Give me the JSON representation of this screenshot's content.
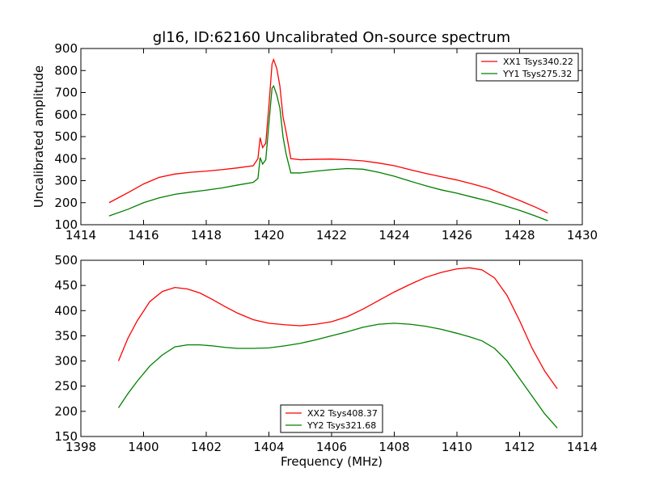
{
  "title": "gl16, ID:62160 Uncalibrated On-source spectrum",
  "chart_data": [
    {
      "type": "line",
      "title": "gl16, ID:62160 Uncalibrated On-source spectrum",
      "xlabel": "",
      "ylabel": "Uncalibrated amplitude",
      "xlim": [
        1414,
        1430
      ],
      "ylim": [
        100,
        900
      ],
      "xticks": [
        "1414",
        "1416",
        "1418",
        "1420",
        "1422",
        "1424",
        "1426",
        "1428",
        "1430"
      ],
      "yticks": [
        "100",
        "200",
        "300",
        "400",
        "500",
        "600",
        "700",
        "800",
        "900"
      ],
      "legend_position": "top-right",
      "series": [
        {
          "name": "XX1 Tsys340.22",
          "color": "#ff0000",
          "x": [
            1414.9,
            1415.5,
            1416.0,
            1416.5,
            1417.0,
            1417.5,
            1418.0,
            1418.5,
            1419.0,
            1419.5,
            1419.65,
            1419.72,
            1419.8,
            1419.9,
            1420.0,
            1420.1,
            1420.15,
            1420.25,
            1420.35,
            1420.45,
            1420.55,
            1420.7,
            1421.0,
            1421.5,
            1422.0,
            1422.5,
            1423.0,
            1423.5,
            1424.0,
            1424.5,
            1425.0,
            1425.5,
            1426.0,
            1426.5,
            1427.0,
            1427.5,
            1428.0,
            1428.5,
            1428.9
          ],
          "values": [
            200,
            245,
            285,
            315,
            330,
            338,
            343,
            350,
            358,
            368,
            400,
            495,
            450,
            470,
            640,
            830,
            850,
            810,
            730,
            590,
            520,
            400,
            395,
            397,
            398,
            395,
            390,
            380,
            368,
            350,
            333,
            318,
            303,
            285,
            265,
            238,
            210,
            180,
            153
          ]
        },
        {
          "name": "YY1 Tsys275.32",
          "color": "#008000",
          "x": [
            1414.9,
            1415.5,
            1416.0,
            1416.5,
            1417.0,
            1417.5,
            1418.0,
            1418.5,
            1419.0,
            1419.5,
            1419.65,
            1419.72,
            1419.8,
            1419.9,
            1420.0,
            1420.1,
            1420.15,
            1420.25,
            1420.35,
            1420.45,
            1420.55,
            1420.7,
            1421.0,
            1421.5,
            1422.0,
            1422.5,
            1423.0,
            1423.5,
            1424.0,
            1424.5,
            1425.0,
            1425.5,
            1426.0,
            1426.5,
            1427.0,
            1427.5,
            1428.0,
            1428.5,
            1428.9
          ],
          "values": [
            140,
            170,
            200,
            222,
            238,
            248,
            257,
            267,
            280,
            292,
            310,
            405,
            375,
            395,
            560,
            720,
            730,
            690,
            630,
            500,
            420,
            335,
            335,
            343,
            350,
            355,
            352,
            338,
            320,
            298,
            277,
            258,
            243,
            225,
            208,
            187,
            165,
            140,
            118
          ]
        }
      ]
    },
    {
      "type": "line",
      "title": "",
      "xlabel": "Frequency (MHz)",
      "ylabel": "",
      "xlim": [
        1398,
        1414
      ],
      "ylim": [
        150,
        500
      ],
      "xticks": [
        "1398",
        "1400",
        "1402",
        "1404",
        "1406",
        "1408",
        "1410",
        "1412",
        "1414"
      ],
      "yticks": [
        "150",
        "200",
        "250",
        "300",
        "350",
        "400",
        "450",
        "500"
      ],
      "legend_position": "lower-center",
      "series": [
        {
          "name": "XX2 Tsys408.37",
          "color": "#ff0000",
          "x": [
            1399.2,
            1399.5,
            1399.8,
            1400.2,
            1400.6,
            1401.0,
            1401.4,
            1401.8,
            1402.2,
            1402.6,
            1403.0,
            1403.5,
            1404.0,
            1404.5,
            1405.0,
            1405.5,
            1406.0,
            1406.5,
            1407.0,
            1407.5,
            1408.0,
            1408.5,
            1409.0,
            1409.5,
            1410.0,
            1410.4,
            1410.8,
            1411.2,
            1411.6,
            1412.0,
            1412.4,
            1412.8,
            1413.2
          ],
          "values": [
            300,
            345,
            380,
            418,
            438,
            446,
            443,
            435,
            422,
            408,
            395,
            382,
            375,
            372,
            370,
            373,
            378,
            388,
            403,
            420,
            437,
            452,
            466,
            476,
            483,
            485,
            481,
            465,
            430,
            380,
            325,
            280,
            245
          ]
        },
        {
          "name": "YY2 Tsys321.68",
          "color": "#008000",
          "x": [
            1399.2,
            1399.5,
            1399.8,
            1400.2,
            1400.6,
            1401.0,
            1401.4,
            1401.8,
            1402.2,
            1402.6,
            1403.0,
            1403.5,
            1404.0,
            1404.5,
            1405.0,
            1405.5,
            1406.0,
            1406.5,
            1407.0,
            1407.5,
            1408.0,
            1408.5,
            1409.0,
            1409.5,
            1410.0,
            1410.4,
            1410.8,
            1411.2,
            1411.6,
            1412.0,
            1412.4,
            1412.8,
            1413.2
          ],
          "values": [
            207,
            235,
            260,
            290,
            312,
            328,
            332,
            332,
            330,
            327,
            325,
            325,
            326,
            330,
            335,
            342,
            350,
            358,
            367,
            373,
            375,
            373,
            369,
            363,
            355,
            348,
            340,
            325,
            300,
            265,
            230,
            195,
            167
          ]
        }
      ]
    }
  ]
}
